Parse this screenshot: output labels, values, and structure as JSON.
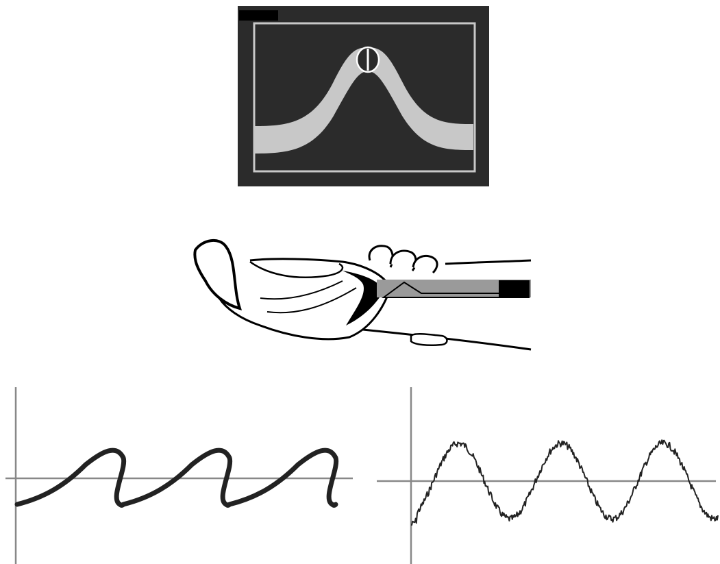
{
  "colors": {
    "background": "#ffffff",
    "monitor_bg": "#2b2b2b",
    "monitor_frame": "#c8c8c8",
    "band": "#c8c8c8",
    "ink": "#222222",
    "axis": "#888888",
    "probe_gray": "#9a9a9a",
    "probe_black": "#000000"
  },
  "panels": {
    "monitor": {
      "icon": "ultrasound-monitor-icon"
    },
    "wrist": {
      "icon": "wrist-probe-icon"
    },
    "wave_left": {
      "icon": "smooth-skewed-wave-icon",
      "cycles": 3
    },
    "wave_right": {
      "icon": "noisy-sine-wave-icon",
      "cycles": 3
    }
  }
}
